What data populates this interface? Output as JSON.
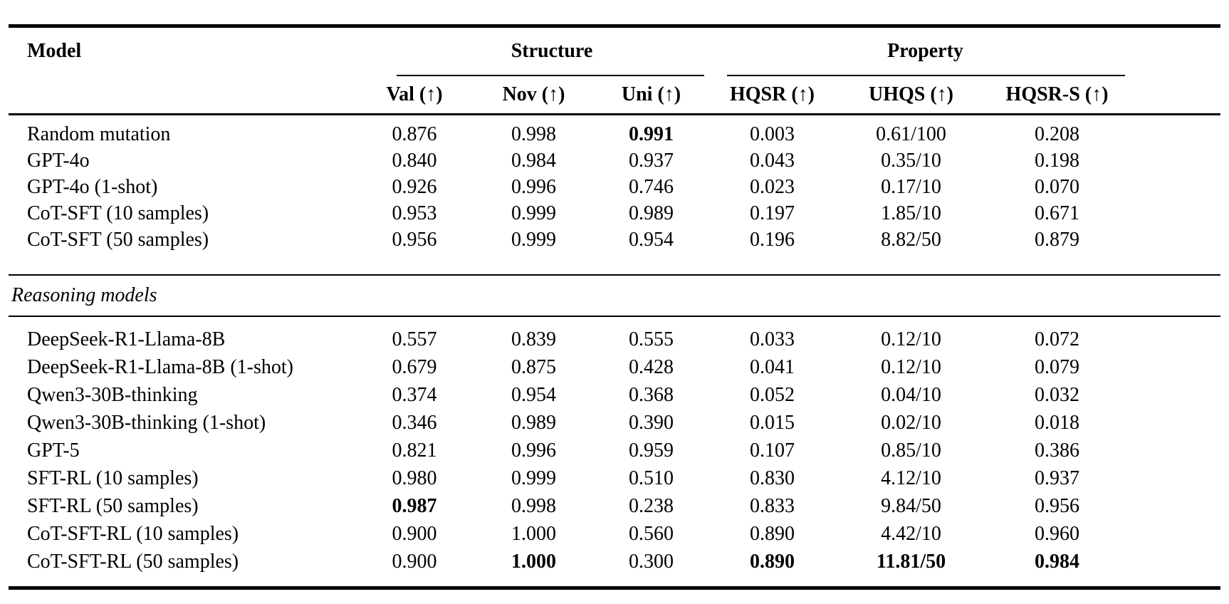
{
  "table": {
    "header": {
      "model_label": "Model",
      "groups": [
        {
          "label": "Structure"
        },
        {
          "label": "Property"
        }
      ],
      "subheaders": [
        "Val (↑)",
        "Nov (↑)",
        "Uni (↑)",
        "HQSR (↑)",
        "UHQS (↑)",
        "HQSR-S (↑)"
      ]
    },
    "sections": [
      {
        "label": "",
        "rows": [
          {
            "model": "Random mutation",
            "values": [
              "0.876",
              "0.998",
              "0.991",
              "0.003",
              "0.61/100",
              "0.208"
            ],
            "bold": [
              2
            ]
          },
          {
            "model": "GPT-4o",
            "values": [
              "0.840",
              "0.984",
              "0.937",
              "0.043",
              "0.35/10",
              "0.198"
            ],
            "bold": []
          },
          {
            "model": "GPT-4o (1-shot)",
            "values": [
              "0.926",
              "0.996",
              "0.746",
              "0.023",
              "0.17/10",
              "0.070"
            ],
            "bold": []
          },
          {
            "model": "CoT-SFT (10 samples)",
            "values": [
              "0.953",
              "0.999",
              "0.989",
              "0.197",
              "1.85/10",
              "0.671"
            ],
            "bold": []
          },
          {
            "model": "CoT-SFT (50 samples)",
            "values": [
              "0.956",
              "0.999",
              "0.954",
              "0.196",
              "8.82/50",
              "0.879"
            ],
            "bold": []
          }
        ]
      },
      {
        "label": "Reasoning models",
        "rows": [
          {
            "model": "DeepSeek-R1-Llama-8B",
            "values": [
              "0.557",
              "0.839",
              "0.555",
              "0.033",
              "0.12/10",
              "0.072"
            ],
            "bold": []
          },
          {
            "model": "DeepSeek-R1-Llama-8B (1-shot)",
            "values": [
              "0.679",
              "0.875",
              "0.428",
              "0.041",
              "0.12/10",
              "0.079"
            ],
            "bold": []
          },
          {
            "model": "Qwen3-30B-thinking",
            "values": [
              "0.374",
              "0.954",
              "0.368",
              "0.052",
              "0.04/10",
              "0.032"
            ],
            "bold": []
          },
          {
            "model": "Qwen3-30B-thinking (1-shot)",
            "values": [
              "0.346",
              "0.989",
              "0.390",
              "0.015",
              "0.02/10",
              "0.018"
            ],
            "bold": []
          },
          {
            "model": "GPT-5",
            "values": [
              "0.821",
              "0.996",
              "0.959",
              "0.107",
              "0.85/10",
              "0.386"
            ],
            "bold": []
          },
          {
            "model": "SFT-RL (10 samples)",
            "values": [
              "0.980",
              "0.999",
              "0.510",
              "0.830",
              "4.12/10",
              "0.937"
            ],
            "bold": []
          },
          {
            "model": "SFT-RL (50 samples)",
            "values": [
              "0.987",
              "0.998",
              "0.238",
              "0.833",
              "9.84/50",
              "0.956"
            ],
            "bold": [
              0
            ]
          },
          {
            "model": "CoT-SFT-RL (10 samples)",
            "values": [
              "0.900",
              "1.000",
              "0.560",
              "0.890",
              "4.42/10",
              "0.960"
            ],
            "bold": []
          },
          {
            "model": "CoT-SFT-RL (50 samples)",
            "values": [
              "0.900",
              "1.000",
              "0.300",
              "0.890",
              "11.81/50",
              "0.984"
            ],
            "bold": [
              1,
              3,
              4,
              5
            ]
          }
        ]
      }
    ]
  }
}
